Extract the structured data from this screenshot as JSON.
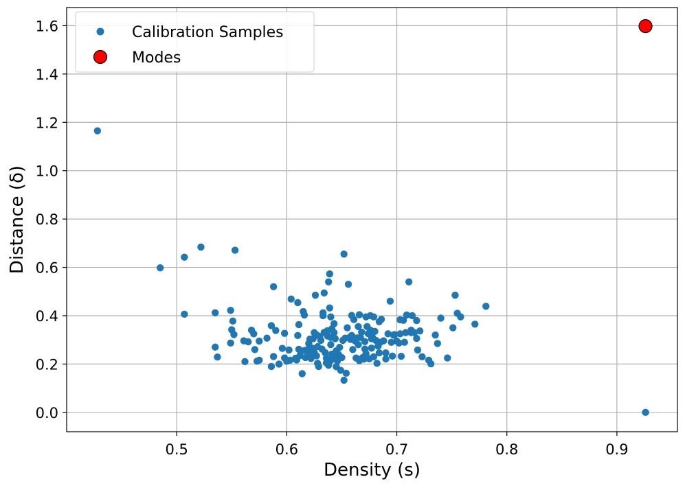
{
  "chart_data": {
    "type": "scatter",
    "title": "",
    "xlabel": "Density (s)",
    "ylabel": "Distance (δ)",
    "xlim": [
      0.4,
      0.955
    ],
    "ylim": [
      -0.08,
      1.675
    ],
    "xticks": [
      0.5,
      0.6,
      0.7,
      0.8,
      0.9
    ],
    "xtick_labels": [
      "0.5",
      "0.6",
      "0.7",
      "0.8",
      "0.9"
    ],
    "yticks": [
      0.0,
      0.2,
      0.4,
      0.6,
      0.8,
      1.0,
      1.2,
      1.4,
      1.6
    ],
    "ytick_labels": [
      "0.0",
      "0.2",
      "0.4",
      "0.6",
      "0.8",
      "1.0",
      "1.2",
      "1.4",
      "1.6"
    ],
    "grid": true,
    "legend_position": "top-left",
    "series": [
      {
        "name": "Calibration Samples",
        "color": "#1f77b4",
        "points": [
          [
            0.428,
            1.165
          ],
          [
            0.485,
            0.598
          ],
          [
            0.507,
            0.642
          ],
          [
            0.507,
            0.406
          ],
          [
            0.522,
            0.684
          ],
          [
            0.553,
            0.671
          ],
          [
            0.535,
            0.412
          ],
          [
            0.535,
            0.27
          ],
          [
            0.537,
            0.229
          ],
          [
            0.549,
            0.422
          ],
          [
            0.55,
            0.342
          ],
          [
            0.551,
            0.378
          ],
          [
            0.552,
            0.322
          ],
          [
            0.549,
            0.287
          ],
          [
            0.561,
            0.296
          ],
          [
            0.562,
            0.21
          ],
          [
            0.565,
            0.292
          ],
          [
            0.568,
            0.34
          ],
          [
            0.57,
            0.325
          ],
          [
            0.571,
            0.26
          ],
          [
            0.573,
            0.212
          ],
          [
            0.575,
            0.295
          ],
          [
            0.575,
            0.216
          ],
          [
            0.582,
            0.307
          ],
          [
            0.586,
            0.359
          ],
          [
            0.586,
            0.19
          ],
          [
            0.588,
            0.52
          ],
          [
            0.588,
            0.231
          ],
          [
            0.59,
            0.339
          ],
          [
            0.593,
            0.2
          ],
          [
            0.596,
            0.265
          ],
          [
            0.598,
            0.327
          ],
          [
            0.598,
            0.225
          ],
          [
            0.6,
            0.212
          ],
          [
            0.602,
            0.258
          ],
          [
            0.603,
            0.216
          ],
          [
            0.604,
            0.469
          ],
          [
            0.608,
            0.224
          ],
          [
            0.609,
            0.217
          ],
          [
            0.61,
            0.454
          ],
          [
            0.61,
            0.318
          ],
          [
            0.611,
            0.363
          ],
          [
            0.611,
            0.261
          ],
          [
            0.612,
            0.235
          ],
          [
            0.614,
            0.16
          ],
          [
            0.615,
            0.417
          ],
          [
            0.616,
            0.403
          ],
          [
            0.616,
            0.256
          ],
          [
            0.617,
            0.227
          ],
          [
            0.619,
            0.26
          ],
          [
            0.62,
            0.285
          ],
          [
            0.62,
            0.243
          ],
          [
            0.621,
            0.303
          ],
          [
            0.622,
            0.223
          ],
          [
            0.623,
            0.266
          ],
          [
            0.624,
            0.305
          ],
          [
            0.625,
            0.248
          ],
          [
            0.625,
            0.33
          ],
          [
            0.626,
            0.485
          ],
          [
            0.627,
            0.321
          ],
          [
            0.627,
            0.234
          ],
          [
            0.628,
            0.272
          ],
          [
            0.628,
            0.203
          ],
          [
            0.629,
            0.19
          ],
          [
            0.63,
            0.314
          ],
          [
            0.631,
            0.298
          ],
          [
            0.632,
            0.262
          ],
          [
            0.633,
            0.412
          ],
          [
            0.633,
            0.4
          ],
          [
            0.634,
            0.494
          ],
          [
            0.634,
            0.331
          ],
          [
            0.635,
            0.247
          ],
          [
            0.636,
            0.224
          ],
          [
            0.636,
            0.205
          ],
          [
            0.637,
            0.338
          ],
          [
            0.637,
            0.316
          ],
          [
            0.638,
            0.54
          ],
          [
            0.638,
            0.195
          ],
          [
            0.639,
            0.573
          ],
          [
            0.639,
            0.432
          ],
          [
            0.64,
            0.31
          ],
          [
            0.64,
            0.395
          ],
          [
            0.64,
            0.28
          ],
          [
            0.64,
            0.215
          ],
          [
            0.641,
            0.346
          ],
          [
            0.641,
            0.241
          ],
          [
            0.642,
            0.227
          ],
          [
            0.643,
            0.367
          ],
          [
            0.643,
            0.33
          ],
          [
            0.644,
            0.305
          ],
          [
            0.645,
            0.255
          ],
          [
            0.645,
            0.224
          ],
          [
            0.645,
            0.189
          ],
          [
            0.646,
            0.213
          ],
          [
            0.647,
            0.24
          ],
          [
            0.648,
            0.269
          ],
          [
            0.649,
            0.174
          ],
          [
            0.65,
            0.227
          ],
          [
            0.651,
            0.298
          ],
          [
            0.652,
            0.655
          ],
          [
            0.652,
            0.133
          ],
          [
            0.653,
            0.307
          ],
          [
            0.654,
            0.162
          ],
          [
            0.655,
            0.35
          ],
          [
            0.656,
            0.53
          ],
          [
            0.657,
            0.31
          ],
          [
            0.658,
            0.302
          ],
          [
            0.659,
            0.401
          ],
          [
            0.659,
            0.318
          ],
          [
            0.66,
            0.26
          ],
          [
            0.661,
            0.384
          ],
          [
            0.662,
            0.296
          ],
          [
            0.663,
            0.225
          ],
          [
            0.664,
            0.308
          ],
          [
            0.665,
            0.355
          ],
          [
            0.665,
            0.28
          ],
          [
            0.666,
            0.404
          ],
          [
            0.666,
            0.214
          ],
          [
            0.667,
            0.31
          ],
          [
            0.668,
            0.332
          ],
          [
            0.669,
            0.227
          ],
          [
            0.67,
            0.22
          ],
          [
            0.671,
            0.293
          ],
          [
            0.671,
            0.262
          ],
          [
            0.672,
            0.395
          ],
          [
            0.672,
            0.243
          ],
          [
            0.673,
            0.355
          ],
          [
            0.674,
            0.326
          ],
          [
            0.675,
            0.325
          ],
          [
            0.675,
            0.222
          ],
          [
            0.676,
            0.4
          ],
          [
            0.676,
            0.34
          ],
          [
            0.677,
            0.305
          ],
          [
            0.677,
            0.266
          ],
          [
            0.678,
            0.31
          ],
          [
            0.679,
            0.395
          ],
          [
            0.679,
            0.23
          ],
          [
            0.68,
            0.335
          ],
          [
            0.681,
            0.298
          ],
          [
            0.682,
            0.203
          ],
          [
            0.683,
            0.274
          ],
          [
            0.684,
            0.375
          ],
          [
            0.684,
            0.246
          ],
          [
            0.685,
            0.29
          ],
          [
            0.686,
            0.385
          ],
          [
            0.688,
            0.296
          ],
          [
            0.69,
            0.221
          ],
          [
            0.69,
            0.246
          ],
          [
            0.692,
            0.325
          ],
          [
            0.694,
            0.46
          ],
          [
            0.695,
            0.29
          ],
          [
            0.696,
            0.233
          ],
          [
            0.697,
            0.32
          ],
          [
            0.698,
            0.322
          ],
          [
            0.7,
            0.295
          ],
          [
            0.702,
            0.287
          ],
          [
            0.703,
            0.325
          ],
          [
            0.703,
            0.383
          ],
          [
            0.704,
            0.232
          ],
          [
            0.706,
            0.381
          ],
          [
            0.707,
            0.29
          ],
          [
            0.708,
            0.33
          ],
          [
            0.709,
            0.403
          ],
          [
            0.711,
            0.54
          ],
          [
            0.713,
            0.33
          ],
          [
            0.713,
            0.34
          ],
          [
            0.714,
            0.4
          ],
          [
            0.716,
            0.33
          ],
          [
            0.718,
            0.38
          ],
          [
            0.718,
            0.306
          ],
          [
            0.719,
            0.258
          ],
          [
            0.721,
            0.337
          ],
          [
            0.723,
            0.23
          ],
          [
            0.729,
            0.216
          ],
          [
            0.731,
            0.201
          ],
          [
            0.735,
            0.32
          ],
          [
            0.737,
            0.285
          ],
          [
            0.74,
            0.39
          ],
          [
            0.746,
            0.225
          ],
          [
            0.751,
            0.35
          ],
          [
            0.753,
            0.485
          ],
          [
            0.755,
            0.41
          ],
          [
            0.758,
            0.395
          ],
          [
            0.771,
            0.365
          ],
          [
            0.781,
            0.439
          ],
          [
            0.926,
            0.0
          ]
        ]
      },
      {
        "name": "Modes",
        "color": "#ff0000",
        "edge_color": "#000000",
        "points": [
          [
            0.926,
            1.598
          ]
        ]
      }
    ]
  }
}
